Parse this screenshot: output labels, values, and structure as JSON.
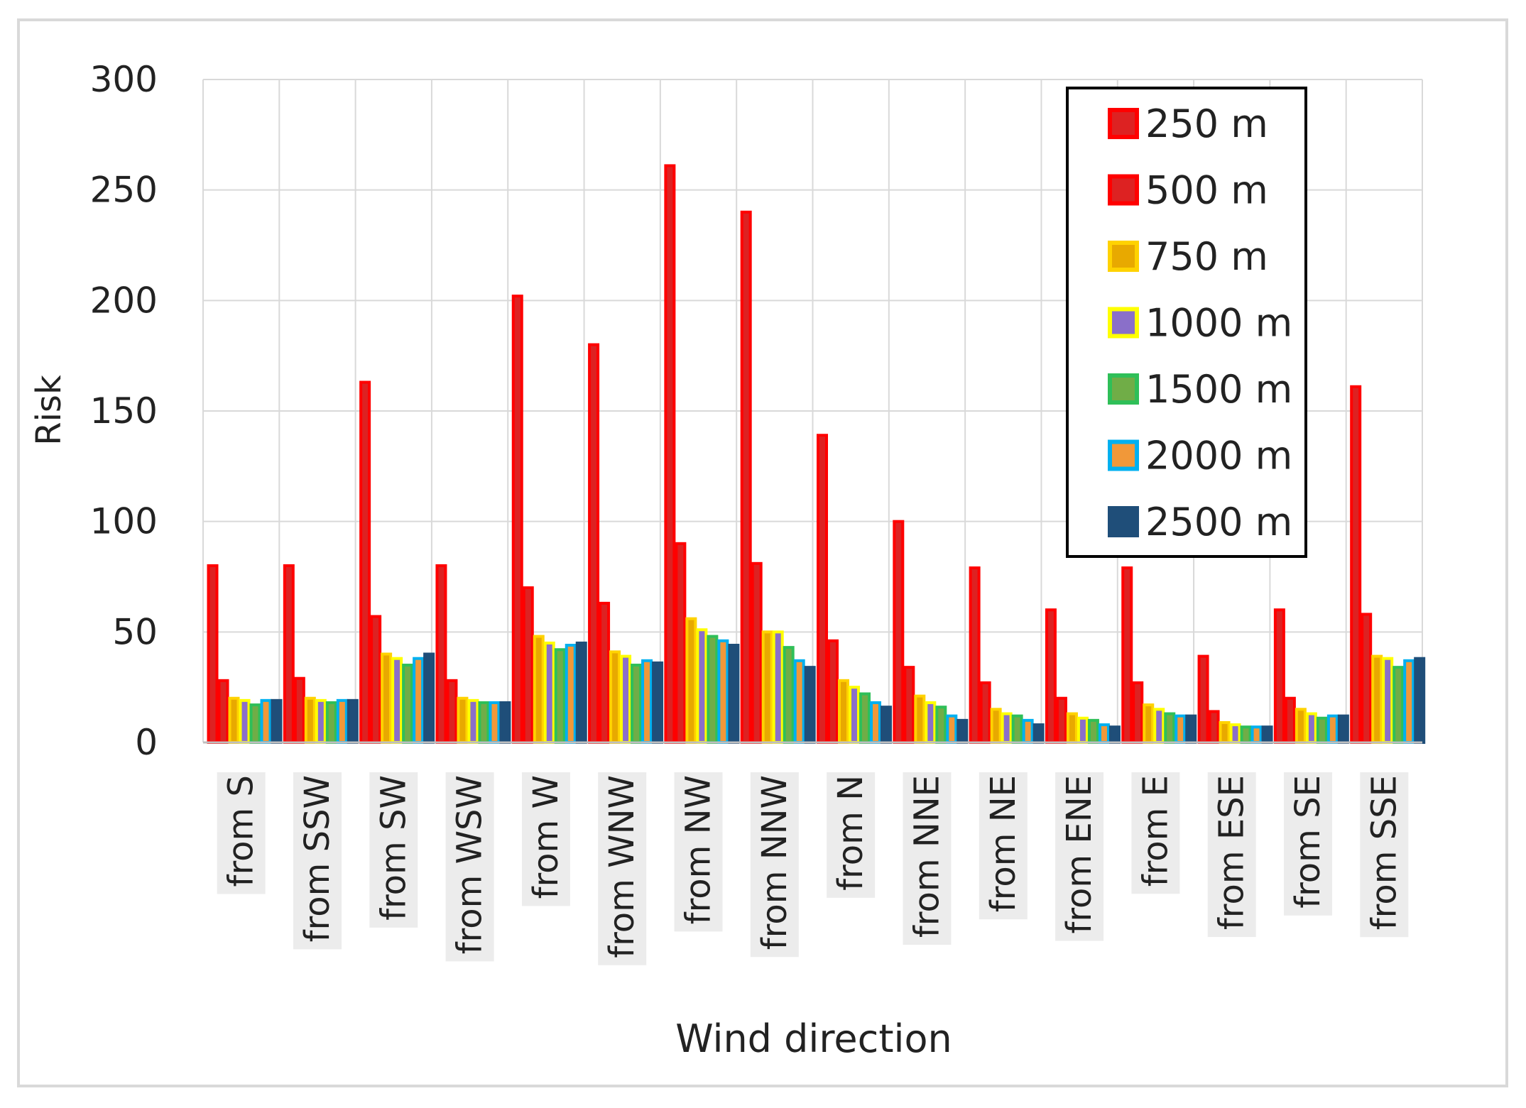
{
  "chart_data": {
    "type": "bar",
    "title": "",
    "xlabel": "Wind direction",
    "ylabel": "Risk",
    "ylim": [
      0,
      300
    ],
    "yticks": [
      0,
      50,
      100,
      150,
      200,
      250,
      300
    ],
    "grid": true,
    "legend_position": "top-right",
    "categories": [
      "from S",
      "from SSW",
      "from SW",
      "from WSW",
      "from W",
      "from WNW",
      "from NW",
      "from NNW",
      "from N",
      "from NNE",
      "from NE",
      "from ENE",
      "from E",
      "from ESE",
      "from SE",
      "from SSE"
    ],
    "series": [
      {
        "name": "250 m",
        "fill": "#dd2222",
        "border": "#ff0000",
        "values": [
          80,
          80,
          163,
          80,
          202,
          180,
          261,
          240,
          139,
          100,
          79,
          60,
          79,
          39,
          60,
          161
        ]
      },
      {
        "name": "500 m",
        "fill": "#dd2222",
        "border": "#ff0000",
        "values": [
          28,
          29,
          57,
          28,
          70,
          63,
          90,
          81,
          46,
          34,
          27,
          20,
          27,
          14,
          20,
          58
        ]
      },
      {
        "name": "750 m",
        "fill": "#e8a900",
        "border": "#ffd200",
        "values": [
          20,
          20,
          40,
          20,
          48,
          41,
          56,
          50,
          28,
          21,
          15,
          13,
          17,
          9,
          15,
          39
        ]
      },
      {
        "name": "1000 m",
        "fill": "#8a6fc9",
        "border": "#ffff00",
        "values": [
          19,
          19,
          38,
          19,
          45,
          39,
          51,
          50,
          25,
          18,
          13,
          11,
          15,
          8,
          13,
          38
        ]
      },
      {
        "name": "1500 m",
        "fill": "#70ad47",
        "border": "#2fbf58",
        "values": [
          17,
          18,
          35,
          18,
          42,
          35,
          48,
          43,
          22,
          16,
          12,
          10,
          13,
          7,
          11,
          34
        ]
      },
      {
        "name": "2000 m",
        "fill": "#f19839",
        "border": "#00b0f0",
        "values": [
          19,
          19,
          38,
          18,
          44,
          37,
          46,
          37,
          18,
          12,
          10,
          8,
          12,
          7,
          12,
          37
        ]
      },
      {
        "name": "2500 m",
        "fill": "#1f4e79",
        "border": "#1f4e79",
        "values": [
          19,
          19,
          40,
          18,
          45,
          36,
          44,
          34,
          16,
          10,
          8,
          7,
          12,
          7,
          12,
          38
        ]
      }
    ]
  }
}
